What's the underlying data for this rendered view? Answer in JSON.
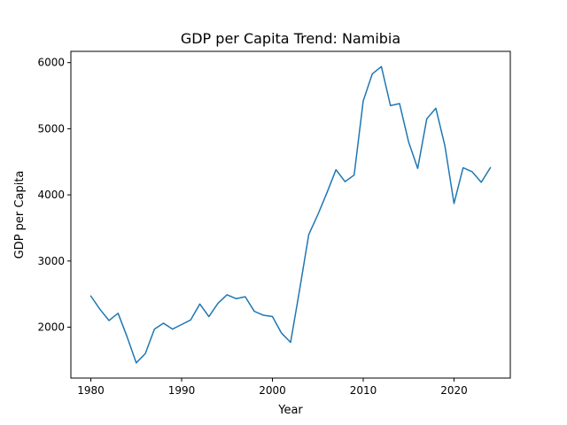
{
  "chart_data": {
    "type": "line",
    "title": "GDP per Capita Trend: Namibia",
    "xlabel": "Year",
    "ylabel": "GDP per Capita",
    "xlim": [
      1977.8,
      2026.2
    ],
    "ylim": [
      1230,
      6170
    ],
    "xticks": [
      1980,
      1990,
      2000,
      2010,
      2020
    ],
    "yticks": [
      2000,
      3000,
      4000,
      5000,
      6000
    ],
    "grid": false,
    "series": [
      {
        "color": "#1f77b4",
        "x": [
          1980,
          1981,
          1982,
          1983,
          1984,
          1985,
          1986,
          1987,
          1988,
          1989,
          1990,
          1991,
          1992,
          1993,
          1994,
          1995,
          1996,
          1997,
          1998,
          1999,
          2000,
          2001,
          2002,
          2003,
          2004,
          2005,
          2006,
          2007,
          2008,
          2009,
          2010,
          2011,
          2012,
          2013,
          2014,
          2015,
          2016,
          2017,
          2018,
          2019,
          2020,
          2021,
          2022,
          2023,
          2024
        ],
        "values": [
          2470,
          2270,
          2100,
          2210,
          1850,
          1460,
          1600,
          1970,
          2060,
          1970,
          2040,
          2110,
          2350,
          2160,
          2360,
          2490,
          2430,
          2460,
          2240,
          2180,
          2160,
          1910,
          1770,
          2570,
          3400,
          3700,
          4030,
          4380,
          4200,
          4300,
          5420,
          5830,
          5940,
          5350,
          5380,
          4800,
          4400,
          5150,
          5310,
          4740,
          3870,
          4410,
          4350,
          4190,
          4410
        ]
      }
    ]
  }
}
